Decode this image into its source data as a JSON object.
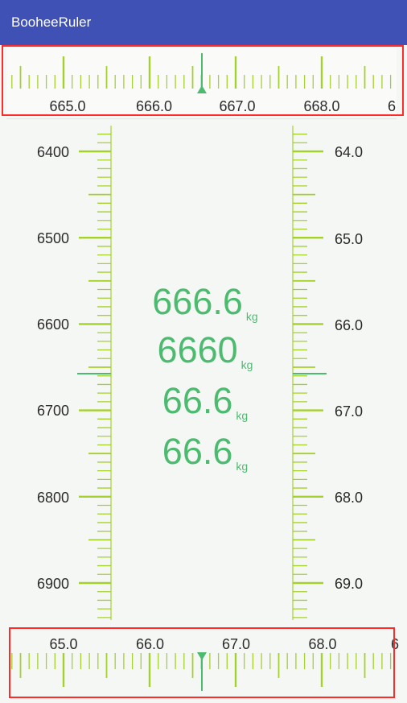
{
  "app": {
    "title": "BooheeRuler"
  },
  "colors": {
    "app_bar": "#3f51b5",
    "tick": "#a5d12c",
    "cursor": "#4cbb70",
    "readout": "#4cbb70",
    "highlight": "#ff2b2b"
  },
  "top_ruler": {
    "labels": [
      "665.0",
      "666.0",
      "667.0",
      "668.0",
      "6"
    ],
    "current_value": 666.6,
    "cursor": "triangle-up-icon"
  },
  "left_ruler": {
    "labels": [
      "6400",
      "6500",
      "6600",
      "6700",
      "6800",
      "6900"
    ],
    "current_value": 6660
  },
  "right_ruler": {
    "labels": [
      "64.0",
      "65.0",
      "66.0",
      "67.0",
      "68.0",
      "69.0"
    ],
    "current_value": 66.6
  },
  "bottom_ruler": {
    "labels": [
      "65.0",
      "66.0",
      "67.0",
      "68.0",
      "6"
    ],
    "current_value": 66.6,
    "cursor": "triangle-down-icon"
  },
  "readouts": [
    {
      "value": "666.6",
      "unit": "kg"
    },
    {
      "value": "6660",
      "unit": "kg"
    },
    {
      "value": "66.6",
      "unit": "kg"
    },
    {
      "value": "66.6",
      "unit": "kg"
    }
  ]
}
